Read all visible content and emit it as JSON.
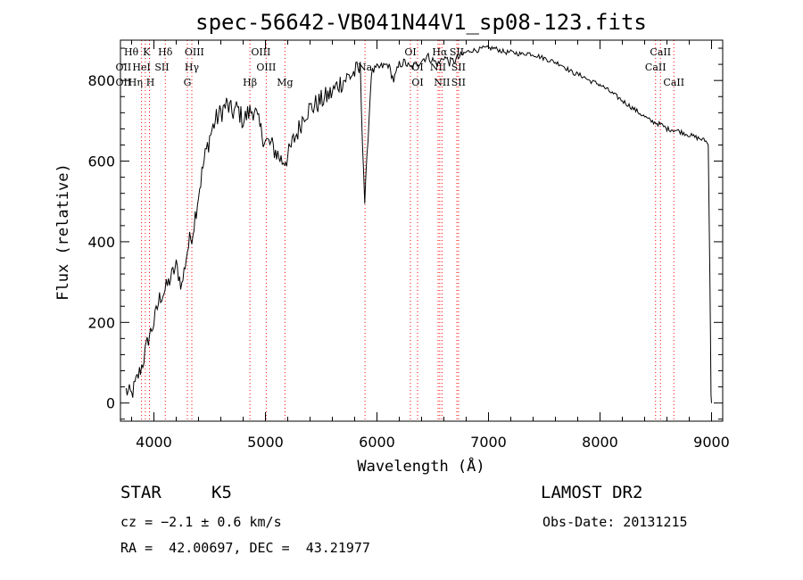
{
  "chart_data": {
    "type": "line",
    "title": "spec-56642-VB041N44V1_sp08-123.fits",
    "xlabel": "Wavelength (Å)",
    "ylabel": "Flux (relative)",
    "xlim": [
      3700,
      9100
    ],
    "ylim": [
      -45,
      900
    ],
    "xticks": [
      4000,
      5000,
      6000,
      7000,
      8000,
      9000
    ],
    "yticks": [
      0,
      200,
      400,
      600,
      800
    ],
    "grid": false,
    "series": [
      {
        "x": [
          3750,
          3800,
          3850,
          3900,
          3950,
          4000,
          4050,
          4100,
          4150,
          4200,
          4250,
          4300,
          4350,
          4400,
          4450,
          4500,
          4550,
          4600,
          4650,
          4700,
          4750,
          4800,
          4850,
          4900,
          4950,
          5000,
          5050,
          5100,
          5150,
          5200,
          5250,
          5300,
          5350,
          5400,
          5450,
          5500,
          5550,
          5600,
          5650,
          5700,
          5750,
          5800,
          5850,
          5890,
          5950,
          6000,
          6050,
          6100,
          6150,
          6200,
          6250,
          6300,
          6350,
          6400,
          6450,
          6500,
          6550,
          6600,
          6650,
          6700,
          6750,
          6800,
          6850,
          6900,
          6950,
          7000,
          7050,
          7100,
          7150,
          7200,
          7250,
          7300,
          7350,
          7400,
          7450,
          7500,
          7550,
          7600,
          7650,
          7700,
          7750,
          7800,
          7850,
          7900,
          7950,
          8000,
          8050,
          8100,
          8150,
          8200,
          8250,
          8300,
          8350,
          8400,
          8450,
          8500,
          8550,
          8600,
          8650,
          8700,
          8750,
          8800,
          8850,
          8900,
          8950,
          8970,
          8985,
          8995,
          9000
        ],
        "y": [
          30,
          20,
          60,
          100,
          160,
          200,
          260,
          280,
          310,
          340,
          290,
          380,
          430,
          520,
          600,
          660,
          700,
          720,
          740,
          720,
          730,
          700,
          720,
          730,
          680,
          650,
          640,
          620,
          600,
          610,
          650,
          680,
          720,
          730,
          740,
          750,
          760,
          770,
          790,
          800,
          810,
          820,
          825,
          500,
          820,
          830,
          835,
          840,
          800,
          840,
          845,
          830,
          840,
          850,
          860,
          850,
          840,
          860,
          845,
          850,
          860,
          870,
          875,
          875,
          880,
          880,
          880,
          875,
          870,
          870,
          868,
          865,
          868,
          865,
          860,
          855,
          850,
          845,
          840,
          830,
          820,
          815,
          810,
          800,
          795,
          790,
          780,
          770,
          760,
          750,
          740,
          730,
          720,
          710,
          700,
          695,
          690,
          680,
          678,
          675,
          670,
          665,
          660,
          655,
          650,
          640,
          320,
          20,
          0
        ]
      }
    ],
    "absorption_lines": [
      {
        "x": 3889
      },
      {
        "x": 3923
      },
      {
        "x": 3960
      },
      {
        "x": 4102
      },
      {
        "x": 4300
      },
      {
        "x": 4340
      },
      {
        "x": 4861
      },
      {
        "x": 5007
      },
      {
        "x": 5175
      },
      {
        "x": 5893
      },
      {
        "x": 6300
      },
      {
        "x": 6364
      },
      {
        "x": 6548
      },
      {
        "x": 6563
      },
      {
        "x": 6583
      },
      {
        "x": 6716
      },
      {
        "x": 6731
      },
      {
        "x": 8498
      },
      {
        "x": 8542
      },
      {
        "x": 8662
      }
    ],
    "line_labels": [
      {
        "text": "Hθ",
        "x": 3797,
        "row": 0
      },
      {
        "text": "K",
        "x": 3934,
        "row": 0
      },
      {
        "text": "Hδ",
        "x": 4102,
        "row": 0
      },
      {
        "text": "OIII",
        "x": 4363,
        "row": 0
      },
      {
        "text": "OIII",
        "x": 4959,
        "row": 0
      },
      {
        "text": "OI",
        "x": 6300,
        "row": 0
      },
      {
        "text": "Hα",
        "x": 6563,
        "row": 0
      },
      {
        "text": "SII",
        "x": 6716,
        "row": 0
      },
      {
        "text": "CaII",
        "x": 8542,
        "row": 0
      },
      {
        "text": "OII",
        "x": 3727,
        "row": 1
      },
      {
        "text": "HeI",
        "x": 3889,
        "row": 1
      },
      {
        "text": "SII",
        "x": 4072,
        "row": 1
      },
      {
        "text": "Hγ",
        "x": 4340,
        "row": 1
      },
      {
        "text": "OIII",
        "x": 5007,
        "row": 1
      },
      {
        "text": "Na",
        "x": 5893,
        "row": 1
      },
      {
        "text": "OI",
        "x": 6364,
        "row": 1
      },
      {
        "text": "NII",
        "x": 6548,
        "row": 1
      },
      {
        "text": "SII",
        "x": 6731,
        "row": 1
      },
      {
        "text": "CaII",
        "x": 8498,
        "row": 1
      },
      {
        "text": "OII",
        "x": 3727,
        "row": 2
      },
      {
        "text": "Hη",
        "x": 3835,
        "row": 2
      },
      {
        "text": "H",
        "x": 3968,
        "row": 2
      },
      {
        "text": "G",
        "x": 4300,
        "row": 2
      },
      {
        "text": "Hβ",
        "x": 4861,
        "row": 2
      },
      {
        "text": "Mg",
        "x": 5175,
        "row": 2
      },
      {
        "text": "OI",
        "x": 6364,
        "row": 2
      },
      {
        "text": "NII",
        "x": 6583,
        "row": 2
      },
      {
        "text": "SII",
        "x": 6731,
        "row": 2
      },
      {
        "text": "CaII",
        "x": 8662,
        "row": 2
      }
    ],
    "colors": {
      "spectrum": "#000000",
      "line_marker": "#ff0000"
    }
  },
  "info": {
    "class": "STAR",
    "subclass": "K5",
    "survey": "LAMOST DR2",
    "cz": "cz = −2.1 ± 0.6 km/s",
    "obs_date": "Obs-Date: 20131215",
    "coords": "RA =  42.00697, DEC =  43.21977"
  }
}
